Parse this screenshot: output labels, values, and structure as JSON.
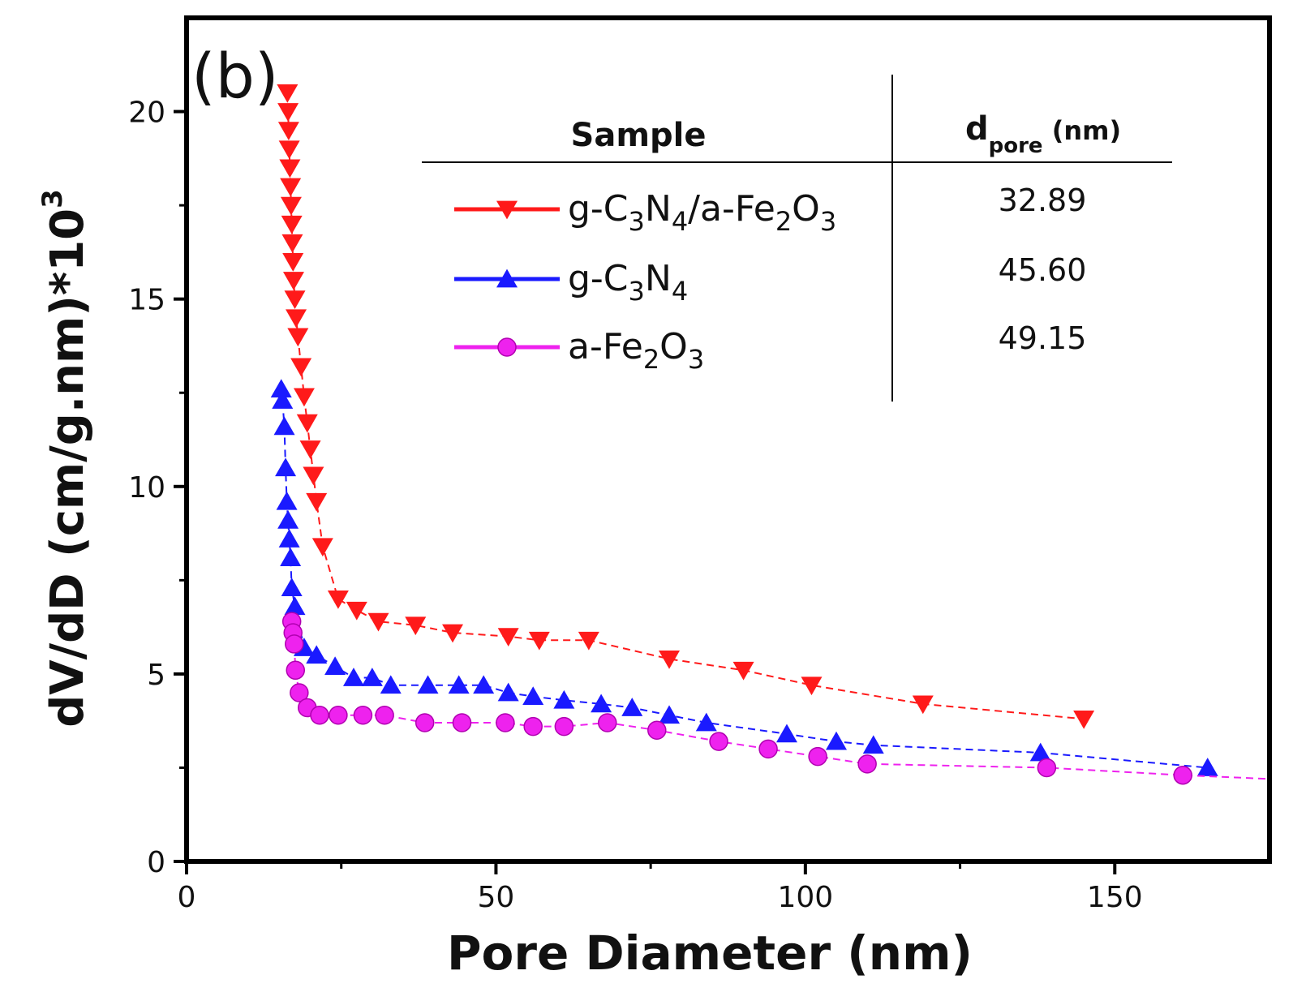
{
  "chart_data": {
    "type": "scatter",
    "panel_label": "(b)",
    "xlabel": "Pore Diameter (nm)",
    "ylabel": "dV/dD (cm/g.nm)*10",
    "ylabel_sup": "3",
    "xlim": [
      0,
      175
    ],
    "ylim": [
      0,
      22.5
    ],
    "xticks": [
      0,
      50,
      100,
      150
    ],
    "yticks": [
      0,
      5,
      10,
      15,
      20
    ],
    "legend": {
      "header_sample": "Sample",
      "header_d": "d",
      "header_d_sub": "pore",
      "header_unit": " (nm)"
    },
    "series": [
      {
        "name": "g-C3N4/a-Fe2O3",
        "label_parts": [
          "g-C",
          "3",
          "N",
          "4",
          "/a-Fe",
          "2",
          "O",
          "3"
        ],
        "d_pore": "32.89",
        "color": "#ff1a1a",
        "marker": "triangle-down",
        "line": "dashed",
        "x": [
          16.3,
          16.4,
          16.5,
          16.6,
          16.7,
          16.8,
          16.9,
          17.0,
          17.1,
          17.2,
          17.3,
          17.5,
          17.7,
          18.0,
          18.5,
          19.0,
          19.5,
          20.0,
          20.5,
          21.0,
          22.0,
          24.5,
          27.5,
          31.0,
          37.0,
          43.0,
          52.0,
          57.0,
          65.0,
          78.0,
          90.0,
          101.0,
          119.0,
          145.0
        ],
        "y": [
          20.5,
          20.0,
          19.5,
          19.0,
          18.5,
          18.0,
          17.5,
          17.0,
          16.5,
          16.0,
          15.5,
          15.0,
          14.5,
          14.0,
          13.2,
          12.4,
          11.7,
          11.0,
          10.3,
          9.6,
          8.4,
          7.0,
          6.7,
          6.4,
          6.3,
          6.1,
          6.0,
          5.9,
          5.9,
          5.4,
          5.1,
          4.7,
          4.2,
          3.8
        ]
      },
      {
        "name": "g-C3N4",
        "label_parts": [
          "g-C",
          "3",
          "N",
          "4"
        ],
        "d_pore": "45.60",
        "color": "#1a1aff",
        "marker": "triangle-up",
        "line": "dashed",
        "x": [
          15.3,
          15.5,
          15.8,
          16.0,
          16.2,
          16.4,
          16.6,
          16.8,
          17.0,
          17.5,
          19.0,
          21.0,
          24.0,
          27.0,
          30.0,
          33.0,
          39.0,
          44.0,
          48.0,
          52.0,
          56.0,
          61.0,
          67.0,
          72.0,
          78.0,
          84.0,
          97.0,
          105.0,
          111.0,
          138.0,
          165.0
        ],
        "y": [
          12.6,
          12.3,
          11.6,
          10.5,
          9.6,
          9.1,
          8.6,
          8.1,
          7.3,
          6.8,
          5.7,
          5.5,
          5.2,
          4.9,
          4.9,
          4.7,
          4.7,
          4.7,
          4.7,
          4.5,
          4.4,
          4.3,
          4.2,
          4.1,
          3.9,
          3.7,
          3.4,
          3.2,
          3.1,
          2.9,
          2.5
        ]
      },
      {
        "name": "a-Fe2O3",
        "label_parts": [
          "a-Fe",
          "2",
          "O",
          "3"
        ],
        "d_pore": "49.15",
        "color": "#ee22ee",
        "marker": "circle",
        "line": "dashed",
        "x": [
          17.0,
          17.2,
          17.4,
          17.6,
          18.2,
          19.5,
          21.5,
          24.5,
          28.5,
          32.0,
          38.5,
          44.5,
          51.5,
          56.0,
          61.0,
          68.0,
          76.0,
          86.0,
          94.0,
          102.0,
          110.0,
          139.0,
          161.0,
          175.0
        ],
        "y": [
          6.4,
          6.1,
          5.8,
          5.1,
          4.5,
          4.1,
          3.9,
          3.9,
          3.9,
          3.9,
          3.7,
          3.7,
          3.7,
          3.6,
          3.6,
          3.7,
          3.5,
          3.2,
          3.0,
          2.8,
          2.6,
          2.5,
          2.3,
          2.2
        ]
      }
    ]
  }
}
